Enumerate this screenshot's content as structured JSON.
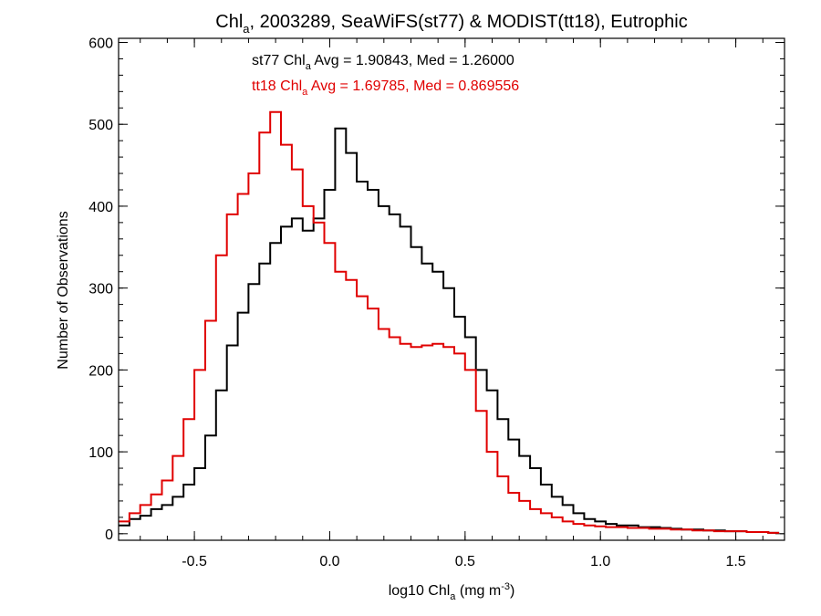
{
  "chart_data": {
    "type": "line",
    "title": {
      "pre": "Chl",
      "sub": "a",
      "post": ", 2003289, SeaWiFS(st77) & MODIST(tt18), Eutrophic"
    },
    "xlabel": {
      "pre": "log10 Chl",
      "sub": "a",
      "mid": " (mg m",
      "sup": "-3",
      "post": ")"
    },
    "ylabel": "Number of Observations",
    "xlim": [
      -0.78,
      1.68
    ],
    "ylim": [
      -8,
      605
    ],
    "xticks": [
      -0.5,
      0.0,
      0.5,
      1.0,
      1.5
    ],
    "xticklabels": [
      "-0.5",
      "0.0",
      "0.5",
      "1.0",
      "1.5"
    ],
    "yticks": [
      0,
      100,
      200,
      300,
      400,
      500,
      600
    ],
    "yticklabels": [
      "0",
      "100",
      "200",
      "300",
      "400",
      "500",
      "600"
    ],
    "x_minor_step": 0.1,
    "y_minor_step": 20,
    "grid": false,
    "plot_style": "step",
    "series": [
      {
        "name": "st77",
        "color": "#000000",
        "annotation": {
          "pre": "st77 Chl",
          "sub": "a",
          "post": " Avg = 1.90843, Med = 1.26000"
        },
        "x": [
          -0.76,
          -0.72,
          -0.68,
          -0.64,
          -0.6,
          -0.56,
          -0.52,
          -0.48,
          -0.44,
          -0.4,
          -0.36,
          -0.32,
          -0.28,
          -0.24,
          -0.2,
          -0.16,
          -0.12,
          -0.08,
          -0.04,
          0.0,
          0.04,
          0.08,
          0.12,
          0.16,
          0.2,
          0.24,
          0.28,
          0.32,
          0.36,
          0.4,
          0.44,
          0.48,
          0.52,
          0.56,
          0.6,
          0.64,
          0.68,
          0.72,
          0.76,
          0.8,
          0.84,
          0.88,
          0.92,
          0.96,
          1.0,
          1.04,
          1.08,
          1.12,
          1.16,
          1.2,
          1.24,
          1.28,
          1.32,
          1.36,
          1.4,
          1.44,
          1.48,
          1.52,
          1.56,
          1.6,
          1.64
        ],
        "values": [
          10,
          18,
          22,
          30,
          35,
          45,
          60,
          80,
          120,
          175,
          230,
          270,
          305,
          330,
          355,
          375,
          385,
          370,
          385,
          420,
          495,
          465,
          430,
          420,
          400,
          390,
          375,
          350,
          330,
          320,
          300,
          265,
          240,
          200,
          175,
          140,
          115,
          95,
          80,
          60,
          45,
          35,
          25,
          18,
          15,
          12,
          10,
          10,
          8,
          8,
          7,
          6,
          5,
          5,
          4,
          4,
          3,
          3,
          2,
          2,
          1
        ]
      },
      {
        "name": "tt18",
        "color": "#e00000",
        "annotation": {
          "pre": "tt18 Chl",
          "sub": "a",
          "post": " Avg = 1.69785, Med = 0.869556"
        },
        "x": [
          -0.76,
          -0.72,
          -0.68,
          -0.64,
          -0.6,
          -0.56,
          -0.52,
          -0.48,
          -0.44,
          -0.4,
          -0.36,
          -0.32,
          -0.28,
          -0.24,
          -0.2,
          -0.16,
          -0.12,
          -0.08,
          -0.04,
          0.0,
          0.04,
          0.08,
          0.12,
          0.16,
          0.2,
          0.24,
          0.28,
          0.32,
          0.36,
          0.4,
          0.44,
          0.48,
          0.52,
          0.56,
          0.6,
          0.64,
          0.68,
          0.72,
          0.76,
          0.8,
          0.84,
          0.88,
          0.92,
          0.96,
          1.0,
          1.04,
          1.08,
          1.12,
          1.16,
          1.2,
          1.24,
          1.28,
          1.32,
          1.36,
          1.4,
          1.44,
          1.48,
          1.52,
          1.56,
          1.6,
          1.64
        ],
        "values": [
          15,
          25,
          35,
          48,
          65,
          95,
          140,
          200,
          260,
          340,
          390,
          415,
          440,
          490,
          515,
          475,
          445,
          400,
          380,
          355,
          320,
          310,
          290,
          275,
          250,
          240,
          232,
          228,
          230,
          232,
          228,
          220,
          200,
          150,
          100,
          70,
          50,
          40,
          30,
          25,
          20,
          15,
          12,
          10,
          9,
          8,
          8,
          7,
          7,
          6,
          6,
          5,
          5,
          4,
          4,
          3,
          3,
          3,
          2,
          2,
          1
        ]
      }
    ]
  }
}
